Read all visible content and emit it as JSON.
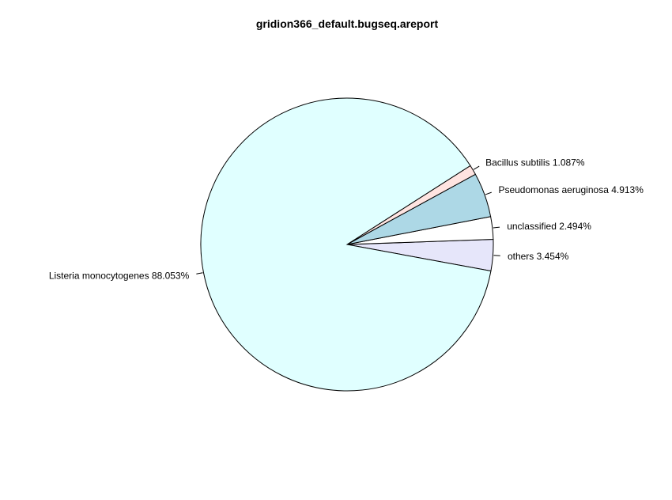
{
  "chart_data": {
    "type": "pie",
    "title": "gridion366_default.bugseq.areport",
    "slices": [
      {
        "label": "others 3.454%",
        "value": 3.454,
        "color": "#E6E6FA"
      },
      {
        "label": "unclassified 2.494%",
        "value": 2.494,
        "color": "#FFFFFF"
      },
      {
        "label": "Pseudomonas aeruginosa 4.913%",
        "value": 4.913,
        "color": "#ADD8E6"
      },
      {
        "label": "Bacillus subtilis 1.087%",
        "value": 1.087,
        "color": "#FFE4E1"
      },
      {
        "label": "Listeria monocytogenes 88.053%",
        "value": 88.053,
        "color": "#E0FFFF"
      }
    ],
    "start_angle_deg": -10.44,
    "direction": "counterclockwise",
    "legend": "none",
    "grid": false
  }
}
